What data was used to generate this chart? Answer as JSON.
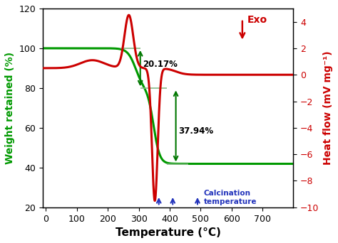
{
  "xlabel": "Temperature (°C)",
  "ylabel_left": "Weight retained (%)",
  "ylabel_right": "Heat flow (mV mg⁻¹)",
  "xlim": [
    -10,
    800
  ],
  "ylim_left": [
    20,
    120
  ],
  "ylim_right": [
    -10,
    5
  ],
  "tga_color": "#009900",
  "dsc_color": "#cc0000",
  "annotation_color": "#000000",
  "arrow_color": "#007700",
  "hline_color": "#88bb88",
  "calcination_arrow_color": "#2233bb",
  "calcination_temps": [
    365,
    410,
    490
  ],
  "exo_label": "Exo",
  "exo_color": "#cc0000",
  "annot_20": "20.17%",
  "annot_37": "37.94%",
  "annot_calc": "Calcination\ntemperature",
  "background_color": "#ffffff",
  "xticks": [
    0,
    100,
    200,
    300,
    400,
    500,
    600,
    700
  ],
  "yticks_left": [
    20,
    40,
    60,
    80,
    100,
    120
  ],
  "yticks_right": [
    -10,
    -8,
    -6,
    -4,
    -2,
    0,
    2,
    4
  ]
}
